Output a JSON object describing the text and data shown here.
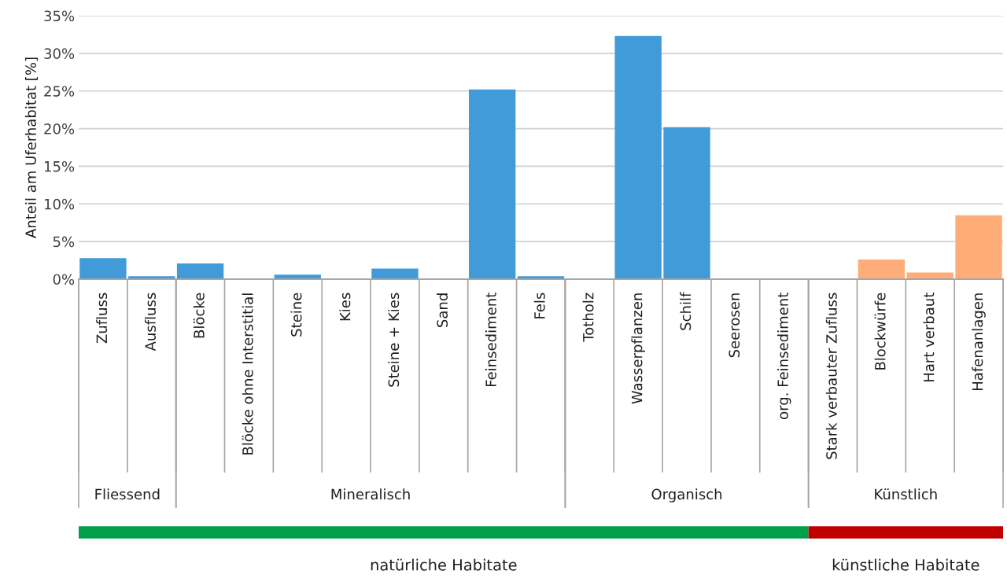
{
  "chart_data": {
    "type": "bar",
    "ylabel": "Anteil am Uferhabitat [%]",
    "categories": [
      "Zufluss",
      "Ausfluss",
      "Blöcke",
      "Blöcke ohne Interstitial",
      "Steine",
      "Kies",
      "Steine + Kies",
      "Sand",
      "Feinsediment",
      "Fels",
      "Totholz",
      "Wasserpflanzen",
      "Schilf",
      "Seerosen",
      "org. Feinsediment",
      "Stark verbauter Zufluss",
      "Blockwürfe",
      "Hart verbaut",
      "Hafenanlagen"
    ],
    "values": [
      2.8,
      0.4,
      2.1,
      0,
      0.6,
      0,
      1.4,
      0,
      25.2,
      0.4,
      0,
      32.3,
      20.2,
      0,
      0,
      0,
      2.6,
      0.9,
      8.5
    ],
    "colors": [
      "#419bd9",
      "#419bd9",
      "#419bd9",
      "#419bd9",
      "#419bd9",
      "#419bd9",
      "#419bd9",
      "#419bd9",
      "#419bd9",
      "#419bd9",
      "#419bd9",
      "#419bd9",
      "#419bd9",
      "#419bd9",
      "#419bd9",
      "#ffad78",
      "#ffad78",
      "#ffad78",
      "#ffad78"
    ],
    "ylim": [
      0,
      35
    ],
    "yticks": [
      {
        "value": 0,
        "label": "0%"
      },
      {
        "value": 5,
        "label": "5%"
      },
      {
        "value": 10,
        "label": "10%"
      },
      {
        "value": 15,
        "label": "15%"
      },
      {
        "value": 20,
        "label": "20%"
      },
      {
        "value": 25,
        "label": "25%"
      },
      {
        "value": 30,
        "label": "30%"
      },
      {
        "value": 35,
        "label": "35%"
      }
    ],
    "grid": "y",
    "annotations": [
      "Fliessend",
      "Mineralisch",
      "Organisch",
      "Künstlich",
      "natürliche Habitate",
      "künstliche Habitate"
    ]
  }
}
